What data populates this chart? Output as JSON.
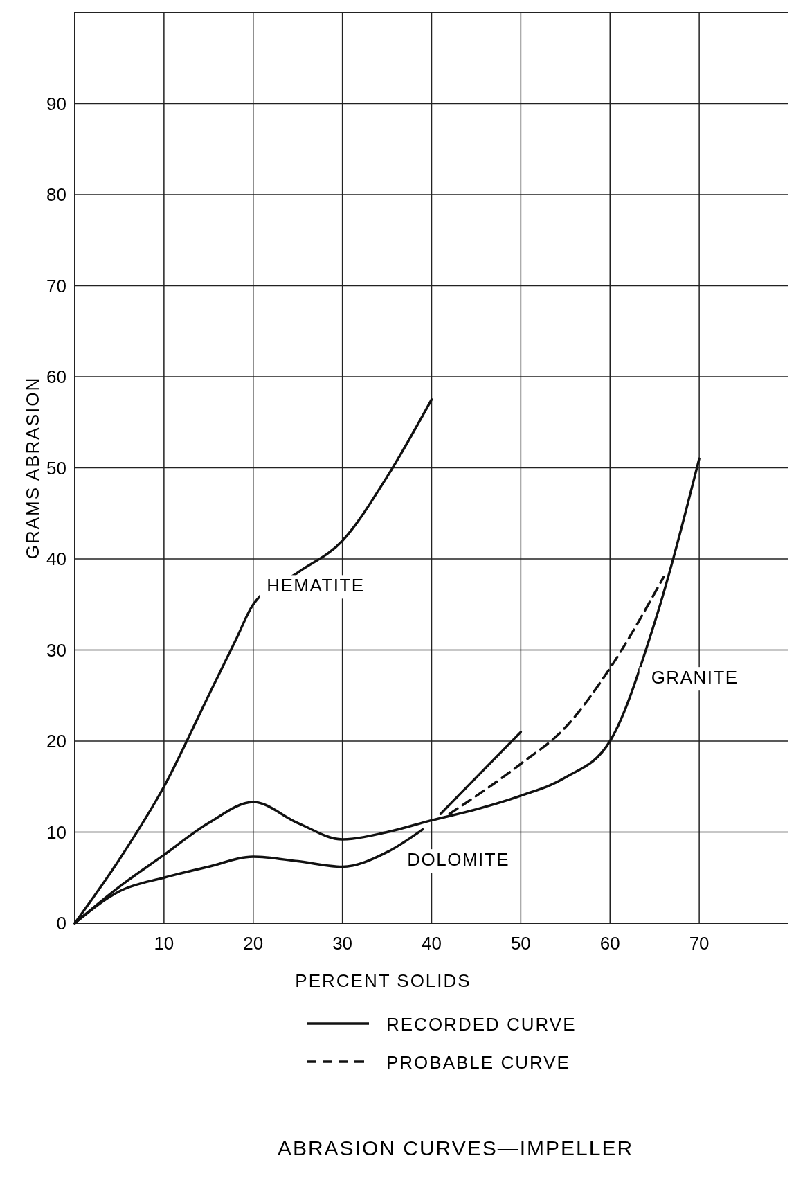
{
  "chart_data": {
    "type": "line",
    "title": "ABRASION CURVES—IMPELLER",
    "xlabel": "PERCENT SOLIDS",
    "ylabel": "GRAMS ABRASION",
    "xlim": [
      0,
      80
    ],
    "ylim": [
      0,
      100
    ],
    "xticks": [
      10,
      20,
      30,
      40,
      50,
      60,
      70
    ],
    "yticks": [
      0,
      10,
      20,
      30,
      40,
      50,
      60,
      70,
      80,
      90
    ],
    "grid": true,
    "legend": "bottom",
    "marker": "none",
    "series": [
      {
        "name": "RECORDED CURVE",
        "color": "#111111",
        "line_style": "solid",
        "x": [
          0,
          5,
          10,
          15,
          18,
          20,
          25,
          30,
          35,
          40
        ],
        "values": [
          0,
          7,
          15,
          25,
          31,
          35,
          38.5,
          42,
          49,
          57.5
        ]
      },
      {
        "color": "#111111",
        "line_style": "solid",
        "x": [
          0,
          5,
          10,
          15,
          20,
          25,
          30,
          35,
          40,
          45,
          50,
          55,
          60,
          65,
          70
        ],
        "values": [
          0,
          4,
          7.5,
          11,
          13.3,
          11,
          9.2,
          10,
          11.3,
          12.5,
          14,
          16,
          20,
          33,
          51
        ]
      },
      {
        "color": "#111111",
        "line_style": "solid",
        "x": [
          0,
          5,
          10,
          15,
          20,
          25,
          30,
          35,
          39
        ],
        "values": [
          0,
          3.5,
          5,
          6.2,
          7.3,
          6.8,
          6.2,
          7.8,
          10.3
        ]
      },
      {
        "color": "#111111",
        "line_style": "solid",
        "x": [
          41,
          50
        ],
        "values": [
          12,
          21
        ]
      },
      {
        "name": "PROBABLE CURVE",
        "color": "#111111",
        "line_style": "dashed",
        "x": [
          42,
          50,
          55,
          60,
          66
        ],
        "values": [
          12,
          17.5,
          21.5,
          28,
          38
        ]
      }
    ],
    "annotations": [
      "HEMATITE",
      "DOLOMITE",
      "GRANITE"
    ]
  }
}
